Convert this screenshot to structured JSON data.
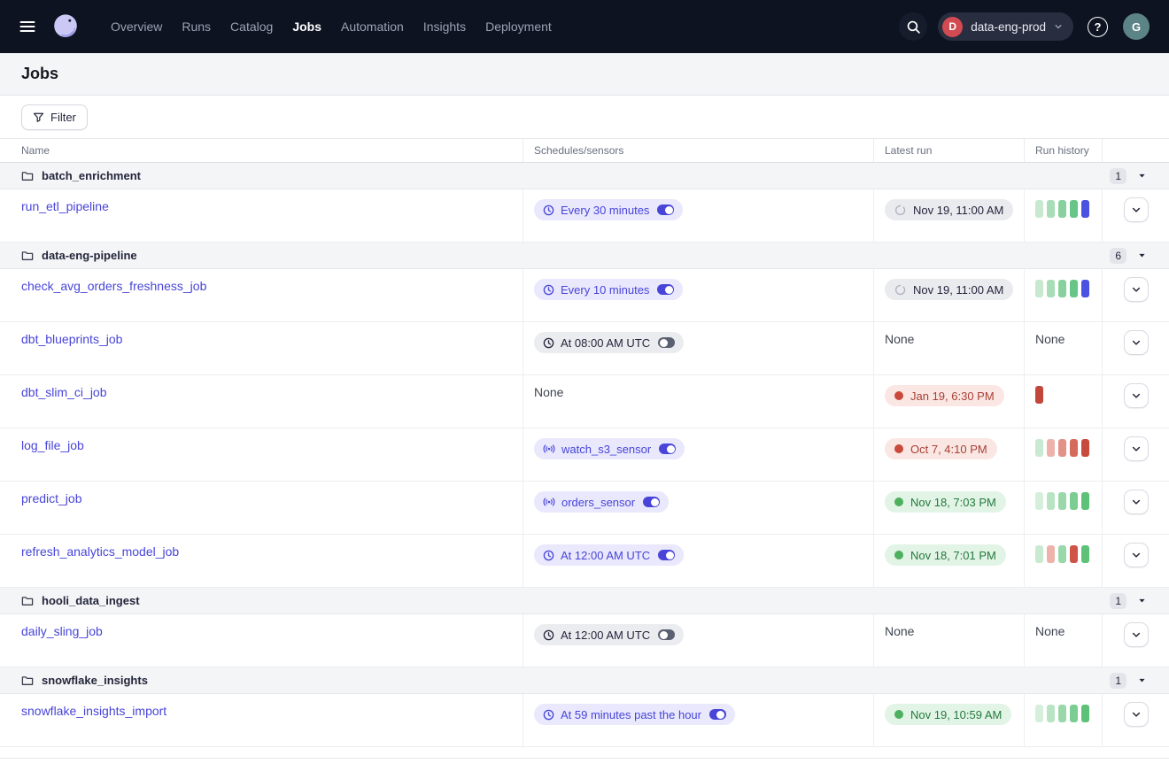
{
  "nav": {
    "items": [
      {
        "label": "Overview",
        "active": false
      },
      {
        "label": "Runs",
        "active": false
      },
      {
        "label": "Catalog",
        "active": false
      },
      {
        "label": "Jobs",
        "active": true
      },
      {
        "label": "Automation",
        "active": false
      },
      {
        "label": "Insights",
        "active": false
      },
      {
        "label": "Deployment",
        "active": false
      }
    ],
    "deployment": {
      "initial": "D",
      "name": "data-eng-prod"
    },
    "help_label": "?",
    "avatar_initial": "G"
  },
  "page": {
    "title": "Jobs",
    "filter_label": "Filter"
  },
  "table": {
    "headers": [
      "Name",
      "Schedules/sensors",
      "Latest run",
      "Run history"
    ],
    "none_label": "None",
    "rows": [
      {
        "type": "group",
        "name": "batch_enrichment",
        "count": "1"
      },
      {
        "type": "job",
        "name": "run_etl_pipeline",
        "schedule": {
          "kind": "schedule",
          "label": "Every 30 minutes",
          "on": true,
          "style": "indigo"
        },
        "latest": {
          "status": "progress",
          "label": "Nov 19, 11:00 AM"
        },
        "history": [
          "#C8E8D0",
          "#A8DDB7",
          "#88D19E",
          "#67C687",
          "#4B52E2"
        ]
      },
      {
        "type": "group",
        "name": "data-eng-pipeline",
        "count": "6"
      },
      {
        "type": "job",
        "name": "check_avg_orders_freshness_job",
        "schedule": {
          "kind": "schedule",
          "label": "Every 10 minutes",
          "on": true,
          "style": "indigo"
        },
        "latest": {
          "status": "progress",
          "label": "Nov 19, 11:00 AM"
        },
        "history": [
          "#C8E8D0",
          "#A8DDB7",
          "#88D19E",
          "#67C687",
          "#4B52E2"
        ]
      },
      {
        "type": "job",
        "name": "dbt_blueprints_job",
        "schedule": {
          "kind": "schedule",
          "label": "At 08:00 AM UTC",
          "on": false,
          "style": "gray"
        },
        "latest": {
          "status": "none"
        },
        "history": "none"
      },
      {
        "type": "job",
        "name": "dbt_slim_ci_job",
        "schedule": {
          "kind": "none"
        },
        "latest": {
          "status": "fail",
          "label": "Jan 19, 6:30 PM"
        },
        "history": [
          "#C2473B"
        ]
      },
      {
        "type": "job",
        "name": "log_file_job",
        "schedule": {
          "kind": "sensor",
          "label": "watch_s3_sensor",
          "on": true,
          "style": "indigo"
        },
        "latest": {
          "status": "fail",
          "label": "Oct 7, 4:10 PM"
        },
        "history": [
          "#C9E9D1",
          "#EDB3AB",
          "#E39288",
          "#D66A5C",
          "#C84A3D"
        ]
      },
      {
        "type": "job",
        "name": "predict_job",
        "schedule": {
          "kind": "sensor",
          "label": "orders_sensor",
          "on": true,
          "style": "indigo"
        },
        "latest": {
          "status": "success",
          "label": "Nov 18, 7:03 PM"
        },
        "history": [
          "#D6EFDC",
          "#B9E4C4",
          "#9AD8AB",
          "#7CCD92",
          "#5DC178"
        ]
      },
      {
        "type": "job",
        "name": "refresh_analytics_model_job",
        "schedule": {
          "kind": "schedule",
          "label": "At 12:00 AM UTC",
          "on": true,
          "style": "indigo"
        },
        "latest": {
          "status": "success",
          "label": "Nov 18, 7:01 PM"
        },
        "history": [
          "#C9E9D1",
          "#EDB3AB",
          "#9AD8AB",
          "#D05348",
          "#5DC178"
        ]
      },
      {
        "type": "group",
        "name": "hooli_data_ingest",
        "count": "1"
      },
      {
        "type": "job",
        "name": "daily_sling_job",
        "schedule": {
          "kind": "schedule",
          "label": "At 12:00 AM UTC",
          "on": false,
          "style": "gray"
        },
        "latest": {
          "status": "none"
        },
        "history": "none"
      },
      {
        "type": "group",
        "name": "snowflake_insights",
        "count": "1"
      },
      {
        "type": "job",
        "name": "snowflake_insights_import",
        "schedule": {
          "kind": "schedule",
          "label": "At 59 minutes past the hour",
          "on": true,
          "style": "indigo"
        },
        "latest": {
          "status": "success",
          "label": "Nov 19, 10:59 AM"
        },
        "history": [
          "#D6EFDC",
          "#B9E4C4",
          "#9AD8AB",
          "#7CCD92",
          "#5DC178"
        ]
      }
    ]
  },
  "colors": {
    "accent": "#4845D8",
    "success": "#4CB05F",
    "failure": "#C94A3D",
    "running": "#4B52E2",
    "nav_bg": "#0E1322",
    "deployment_avatar": "#D24B52",
    "user_avatar": "#5C8486"
  }
}
